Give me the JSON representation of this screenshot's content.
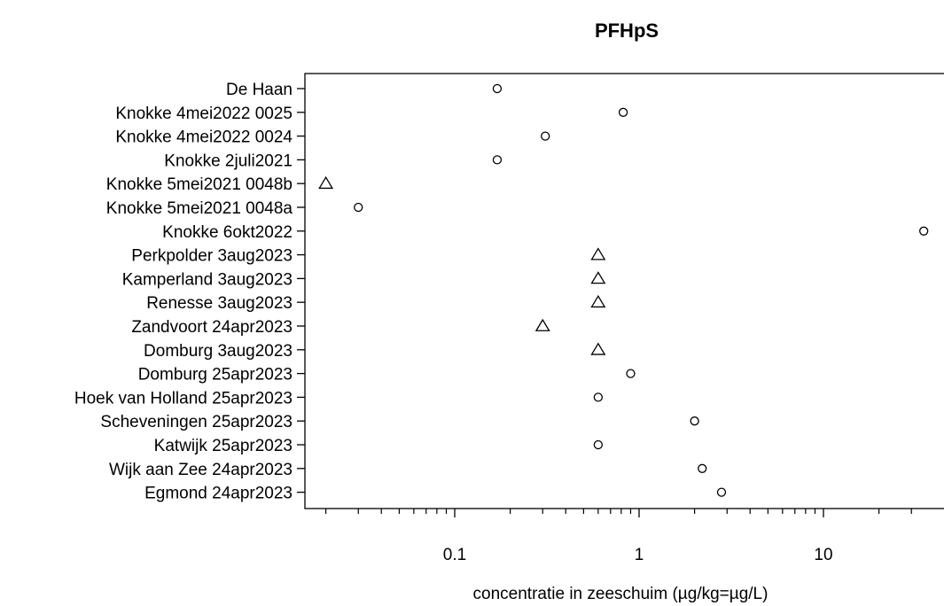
{
  "chart_data": {
    "type": "scatter",
    "title": "PFHpS",
    "xlabel": "concentratie in zeeschuim (µg/kg=µg/L)",
    "ylabel": "",
    "x_scale": "log",
    "xlim": [
      0.0138,
      40
    ],
    "x_ticks": [
      {
        "value": 0.1,
        "label": "0.1"
      },
      {
        "value": 1,
        "label": "1"
      },
      {
        "value": 10,
        "label": "10"
      }
    ],
    "minor_ticks": [
      0.02,
      0.03,
      0.04,
      0.05,
      0.06,
      0.07,
      0.08,
      0.09,
      0.2,
      0.3,
      0.4,
      0.5,
      0.6,
      0.7,
      0.8,
      0.9,
      2,
      3,
      4,
      5,
      6,
      7,
      8,
      9,
      20,
      30
    ],
    "grid": false,
    "legend": "none",
    "point_color": "#000000",
    "points": [
      {
        "label": "De Haan",
        "x": 0.17,
        "marker": "circle"
      },
      {
        "label": "Knokke 4mei2022 0025",
        "x": 0.82,
        "marker": "circle"
      },
      {
        "label": "Knokke 4mei2022 0024",
        "x": 0.31,
        "marker": "circle"
      },
      {
        "label": "Knokke 2juli2021",
        "x": 0.17,
        "marker": "circle"
      },
      {
        "label": "Knokke 5mei2021 0048b",
        "x": 0.02,
        "marker": "triangle"
      },
      {
        "label": "Knokke 5mei2021 0048a",
        "x": 0.03,
        "marker": "circle"
      },
      {
        "label": "Knokke 6okt2022",
        "x": 35,
        "marker": "circle"
      },
      {
        "label": "Perkpolder 3aug2023",
        "x": 0.6,
        "marker": "triangle"
      },
      {
        "label": "Kamperland 3aug2023",
        "x": 0.6,
        "marker": "triangle"
      },
      {
        "label": "Renesse 3aug2023",
        "x": 0.6,
        "marker": "triangle"
      },
      {
        "label": "Zandvoort 24apr2023",
        "x": 0.3,
        "marker": "triangle"
      },
      {
        "label": "Domburg 3aug2023",
        "x": 0.6,
        "marker": "triangle"
      },
      {
        "label": "Domburg 25apr2023",
        "x": 0.9,
        "marker": "circle"
      },
      {
        "label": "Hoek van Holland 25apr2023",
        "x": 0.6,
        "marker": "circle"
      },
      {
        "label": "Scheveningen 25apr2023",
        "x": 2.0,
        "marker": "circle"
      },
      {
        "label": "Katwijk 25apr2023",
        "x": 0.6,
        "marker": "circle"
      },
      {
        "label": "Wijk aan Zee 24apr2023",
        "x": 2.2,
        "marker": "circle"
      },
      {
        "label": "Egmond 24apr2023",
        "x": 2.8,
        "marker": "circle"
      }
    ]
  }
}
